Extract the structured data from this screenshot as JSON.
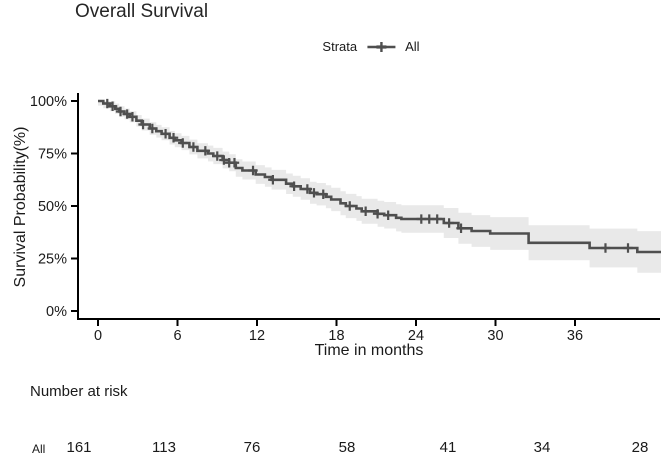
{
  "title": "Overall Survival",
  "legend": {
    "label": "Strata",
    "series_label": "All"
  },
  "risk_table": {
    "header": "Number at risk",
    "row_label": "All",
    "counts": [
      "161",
      "113",
      "76",
      "58",
      "41",
      "34",
      "28"
    ]
  },
  "colors": {
    "curve": "#4f4f4f",
    "band": "#e9e9e9",
    "axis": "#000000",
    "text": "#1a1a1a"
  },
  "chart_data": {
    "type": "line",
    "subtype": "kaplan-meier-step",
    "title": "Overall Survival",
    "xlabel": "Time in months",
    "ylabel": "Survival Probability(%)",
    "x_ticks": [
      0,
      6,
      12,
      18,
      24,
      30,
      36
    ],
    "x_tick_labels": [
      "0",
      "6",
      "12",
      "18",
      "24",
      "30",
      "36"
    ],
    "y_ticks": [
      0,
      25,
      50,
      75,
      100
    ],
    "y_tick_labels": [
      "0%",
      "25%",
      "50%",
      "75%",
      "100%"
    ],
    "xlim": [
      -1.5,
      42.5
    ],
    "ylim": [
      0,
      105
    ],
    "grid": "off",
    "legend_position": "top",
    "series": [
      {
        "name": "All",
        "steps": [
          [
            0,
            100
          ],
          [
            0.4,
            98.8
          ],
          [
            0.9,
            97.5
          ],
          [
            1.3,
            96.3
          ],
          [
            1.6,
            95
          ],
          [
            2,
            93.8
          ],
          [
            2.4,
            92.5
          ],
          [
            2.9,
            90.6
          ],
          [
            3.3,
            88.8
          ],
          [
            3.9,
            86.9
          ],
          [
            4.4,
            85.6
          ],
          [
            4.8,
            84.4
          ],
          [
            5.4,
            82.5
          ],
          [
            5.8,
            81.3
          ],
          [
            6.3,
            80
          ],
          [
            6.9,
            78.1
          ],
          [
            7.5,
            76.3
          ],
          [
            8.3,
            75
          ],
          [
            8.7,
            73.8
          ],
          [
            9.4,
            71.9
          ],
          [
            9.9,
            70.6
          ],
          [
            10.4,
            68.1
          ],
          [
            10.9,
            66.9
          ],
          [
            11.9,
            65
          ],
          [
            12.6,
            63.8
          ],
          [
            13.1,
            62.5
          ],
          [
            14.2,
            60.6
          ],
          [
            14.7,
            59.4
          ],
          [
            15.3,
            58.1
          ],
          [
            16,
            56.3
          ],
          [
            16.5,
            55.6
          ],
          [
            17.2,
            54.4
          ],
          [
            17.6,
            53.1
          ],
          [
            18.3,
            51.3
          ],
          [
            18.7,
            50
          ],
          [
            19.5,
            48.8
          ],
          [
            19.9,
            47.5
          ],
          [
            21.1,
            46.3
          ],
          [
            21.6,
            45.6
          ],
          [
            22.5,
            44.4
          ],
          [
            22.9,
            43.8
          ],
          [
            26.1,
            41.9
          ],
          [
            27.2,
            39.4
          ],
          [
            28.2,
            38.1
          ],
          [
            29.6,
            36.9
          ],
          [
            32.5,
            32.5
          ],
          [
            37.1,
            30
          ],
          [
            40.7,
            28.1
          ],
          [
            42.5,
            28.1
          ]
        ],
        "censor_times": [
          0.7,
          1.1,
          1.7,
          2.2,
          2.6,
          3.4,
          4.1,
          5.1,
          5.7,
          6.4,
          7.2,
          8.1,
          9,
          9.5,
          9.9,
          10.3,
          11.7,
          13.2,
          14.8,
          15.8,
          16.3,
          17,
          19,
          20.2,
          21.1,
          21.9,
          24.4,
          25,
          25.6,
          26.5,
          27.4,
          38.3,
          40
        ],
        "ci_halfwidth": {
          "base": 2.2,
          "per_month": 0.19
        }
      }
    ]
  }
}
